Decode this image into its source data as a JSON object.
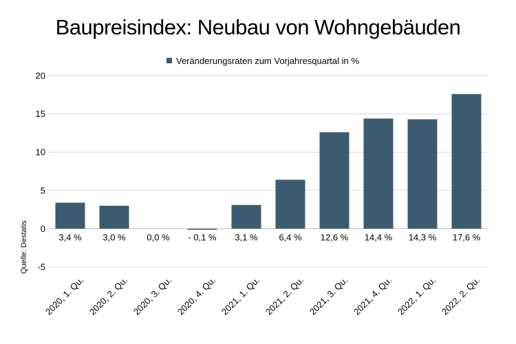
{
  "chart_data": {
    "type": "bar",
    "title": "Baupreisindex: Neubau von Wohngebäuden",
    "categories": [
      "2020, 1. Qu.",
      "2020, 2. Qu.",
      "2020, 3. Qu.",
      "2020, 4. Qu.",
      "2021, 1. Qu.",
      "2021, 2. Qu.",
      "2021, 3. Qu.",
      "2021, 4. Qu.",
      "2022, 1. Qu.",
      "2022, 2. Qu."
    ],
    "series": [
      {
        "name": "Veränderungsraten zum Vorjahresquartal in %",
        "values": [
          3.4,
          3.0,
          0.0,
          -0.1,
          3.1,
          6.4,
          12.6,
          14.4,
          14.3,
          17.6
        ],
        "labels": [
          "3,4 %",
          "3,0 %",
          "0,0 %",
          "- 0,1 %",
          "3,1 %",
          "6,4 %",
          "12,6 %",
          "14,4 %",
          "14,3 %",
          "17,6 %"
        ]
      }
    ],
    "y_ticks": [
      "20",
      "15",
      "10",
      "5",
      "0",
      "-5"
    ],
    "ylim": [
      -5,
      20
    ],
    "grid": true,
    "legend": "top-center",
    "source": "Quelle: Destatis",
    "colors": {
      "bar": "#3d5b70",
      "grid": "#d9d9d9",
      "axis": "#bfbfbf"
    }
  }
}
